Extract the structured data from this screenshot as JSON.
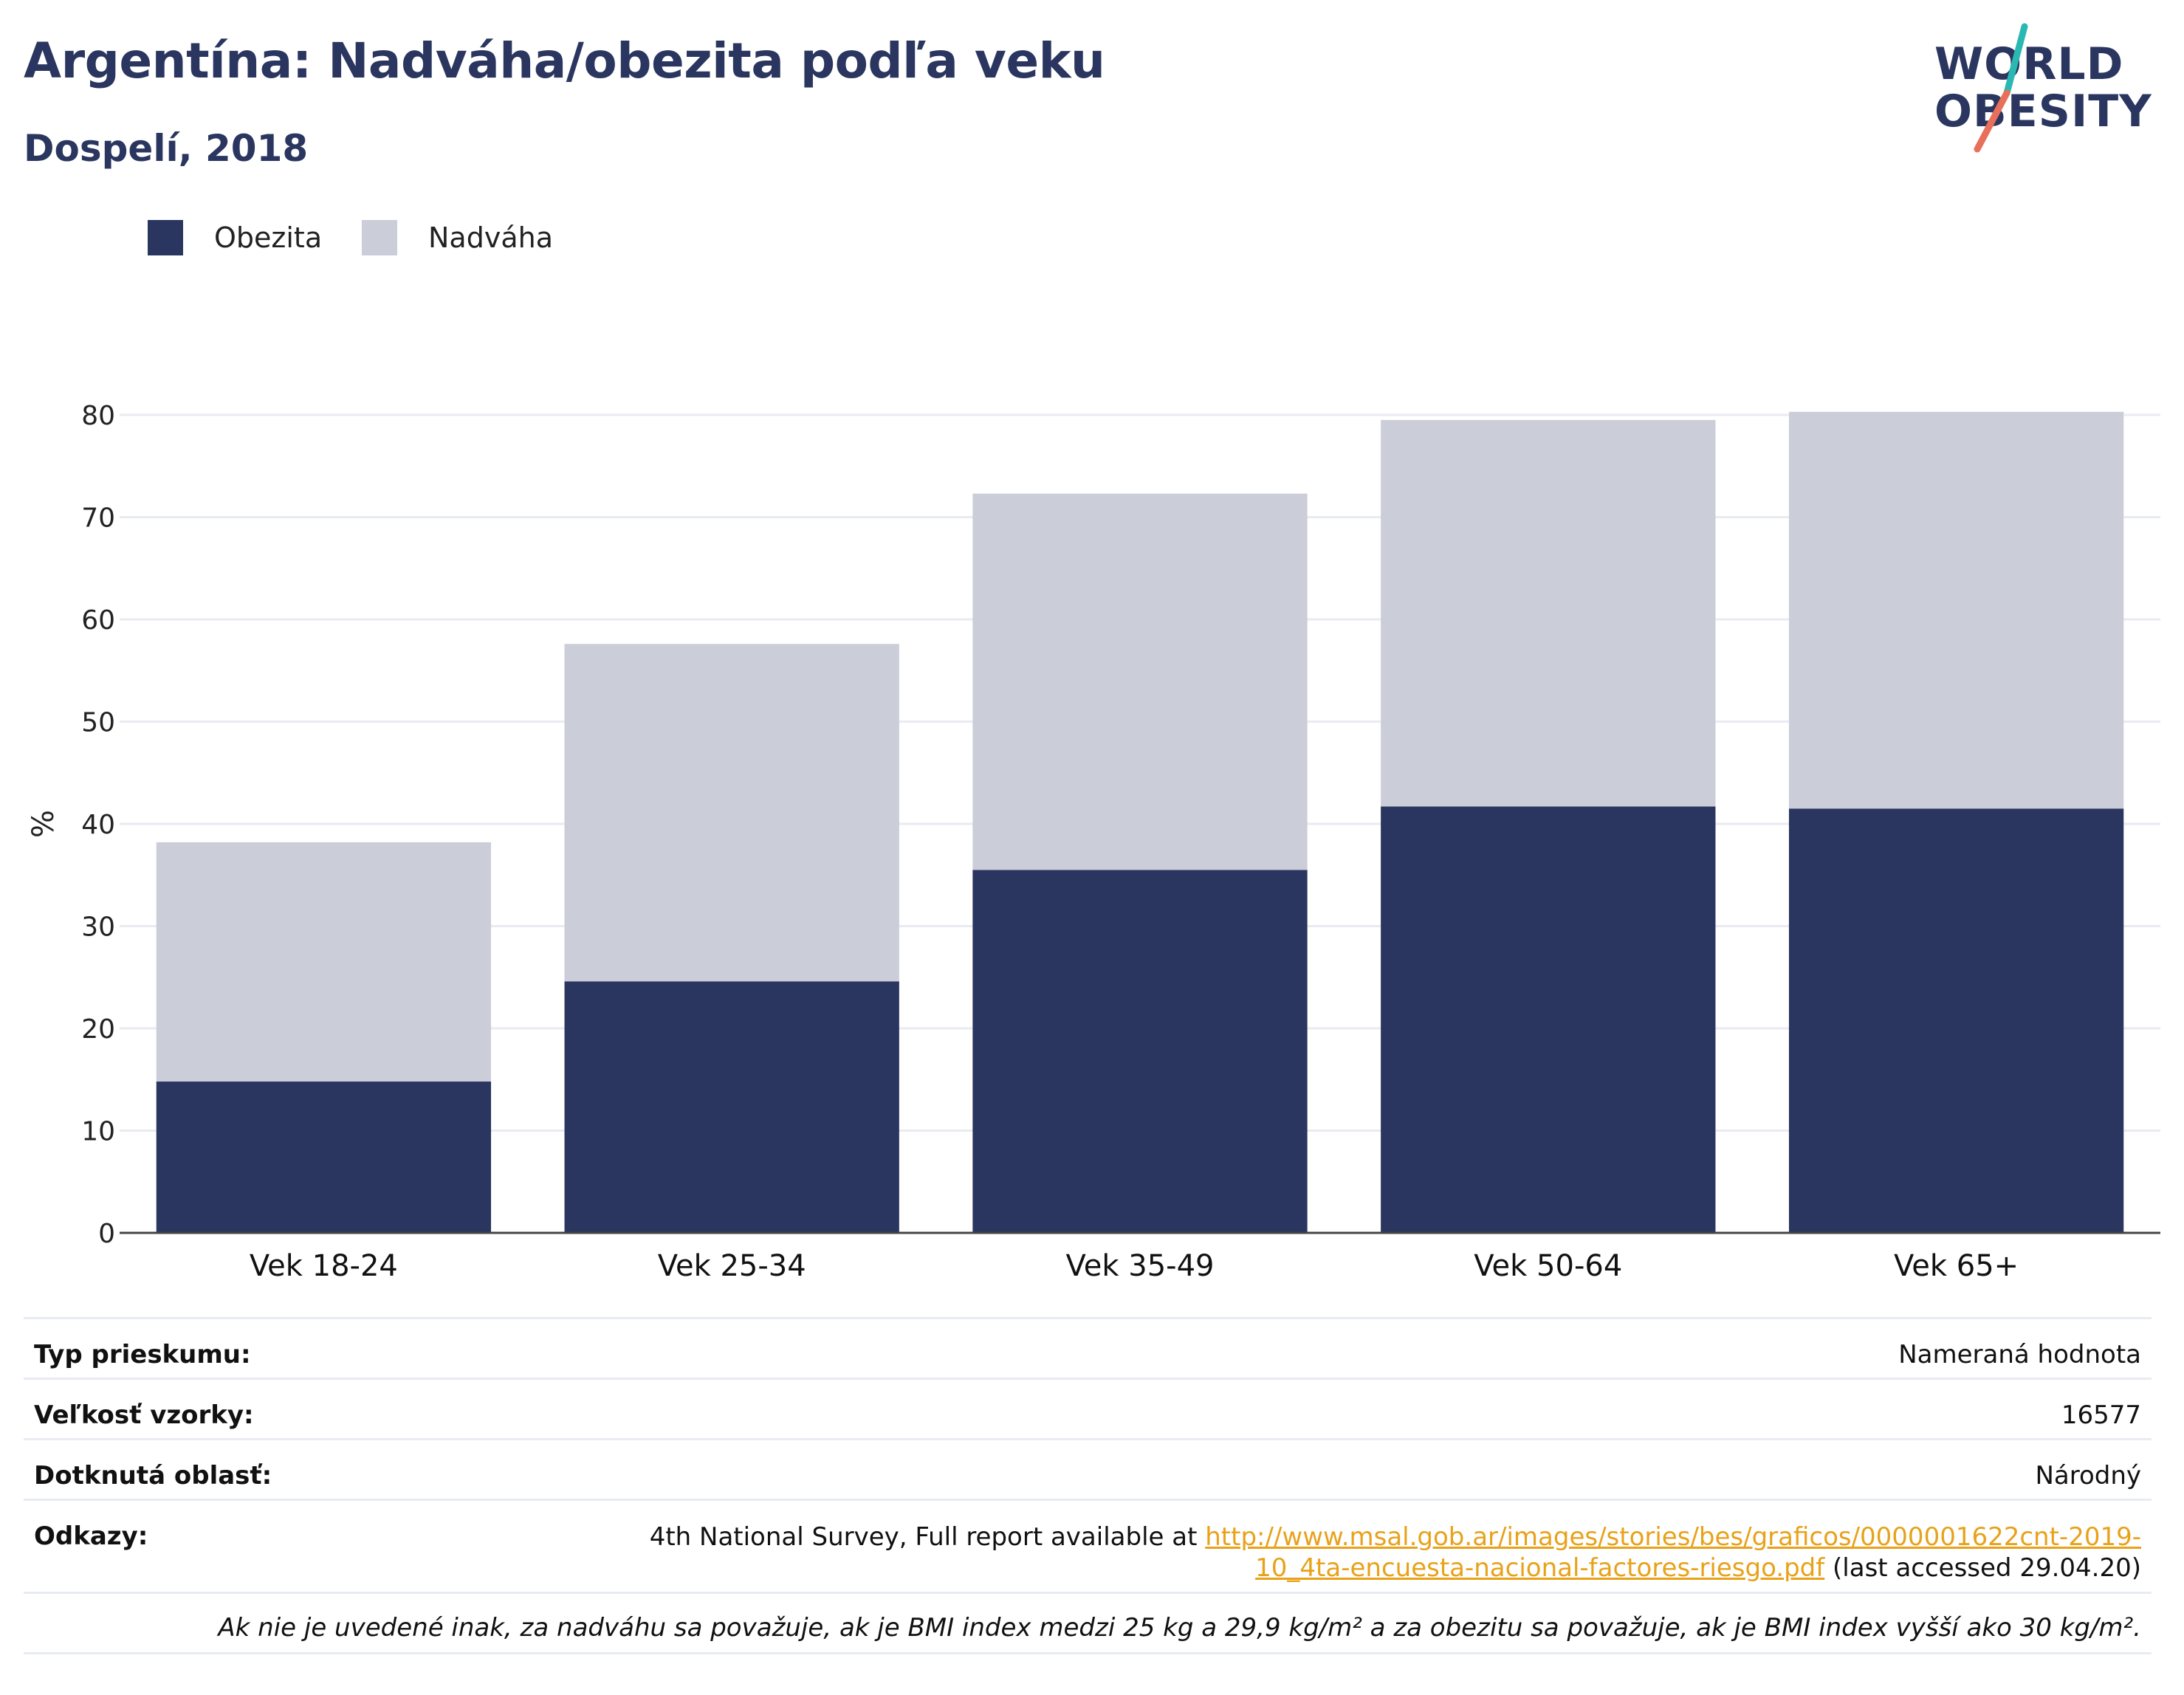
{
  "title": "Argentína: Nadváha/obezita podľa veku",
  "subtitle": "Dospelí, 2018",
  "logo": {
    "line1": "WORLD",
    "line2": "OBESITY",
    "accent_teal": "#2bb8b3",
    "accent_coral": "#e8705a"
  },
  "colors": {
    "obesity": "#2a365f",
    "overweight": "#cbcdd9",
    "grid": "#e9ebf2",
    "axis": "#444444"
  },
  "chart_data": {
    "type": "bar",
    "stacked": true,
    "categories": [
      "Vek 18-24",
      "Vek 25-34",
      "Vek 35-49",
      "Vek 50-64",
      "Vek 65+"
    ],
    "series": [
      {
        "name": "Obezita",
        "values": [
          14.8,
          24.6,
          35.5,
          41.7,
          41.5
        ]
      },
      {
        "name": "Nadváha",
        "values": [
          23.4,
          33.0,
          36.8,
          37.8,
          38.8
        ]
      }
    ],
    "ylabel": "%",
    "ylim": [
      0,
      80
    ],
    "yticks": [
      0,
      10,
      20,
      30,
      40,
      50,
      60,
      70,
      80
    ],
    "grid": true,
    "legend_position": "top-left"
  },
  "legend": {
    "obesity_label": "Obezita",
    "overweight_label": "Nadváha"
  },
  "info": {
    "survey_type_label": "Typ prieskumu:",
    "survey_type_value": "Nameraná hodnota",
    "sample_size_label": "Veľkosť vzorky:",
    "sample_size_value": "16577",
    "area_label": "Dotknutá oblasť:",
    "area_value": "Národný",
    "references_label": "Odkazy:",
    "references_text_before": "4th National Survey, Full report available at ",
    "references_link": "http://www.msal.gob.ar/images/stories/bes/graficos/0000001622cnt-2019-10_4ta-encuesta-nacional-factores-riesgo.pdf",
    "references_text_after": " (last accessed 29.04.20)",
    "footnote": "Ak nie je uvedené inak, za nadváhu sa považuje, ak je BMI index medzi 25 kg a 29,9 kg/m² a za obezitu sa považuje, ak je BMI index vyšší ako 30 kg/m²."
  }
}
